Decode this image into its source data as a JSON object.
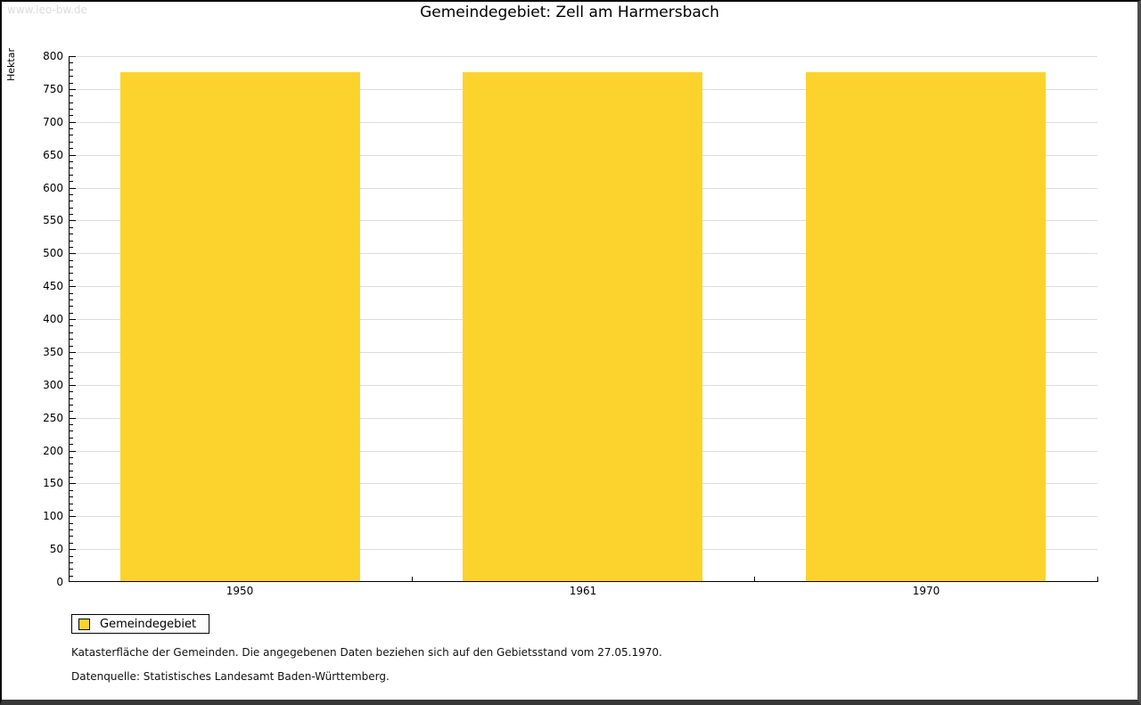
{
  "page": {
    "watermark": "www.leo-bw.de",
    "title": "Gemeindegebiet: Zell am Harmersbach"
  },
  "chart_data": {
    "type": "bar",
    "title": "Gemeindegebiet: Zell am Harmersbach",
    "categories": [
      "1950",
      "1961",
      "1970"
    ],
    "series": [
      {
        "name": "Gemeindegebiet",
        "values": [
          776,
          776,
          776
        ]
      }
    ],
    "xlabel": "",
    "ylabel": "Hektar",
    "ylim": [
      0,
      800
    ],
    "ytick_major_step": 50,
    "ytick_minor_step": 10,
    "grid": true,
    "legend_position": "bottom-left",
    "bar_color": "#fcd32d",
    "gridline_color": "#dcdcdc",
    "axis_color": "#000000"
  },
  "legend": {
    "items": [
      {
        "label": "Gemeindegebiet",
        "color": "#fcd32d"
      }
    ]
  },
  "footnotes": {
    "line1": "Katasterfläche der Gemeinden. Die angegebenen Daten beziehen sich auf den Gebietsstand vom 27.05.1970.",
    "line2": "Datenquelle: Statistisches Landesamt Baden-Württemberg."
  }
}
